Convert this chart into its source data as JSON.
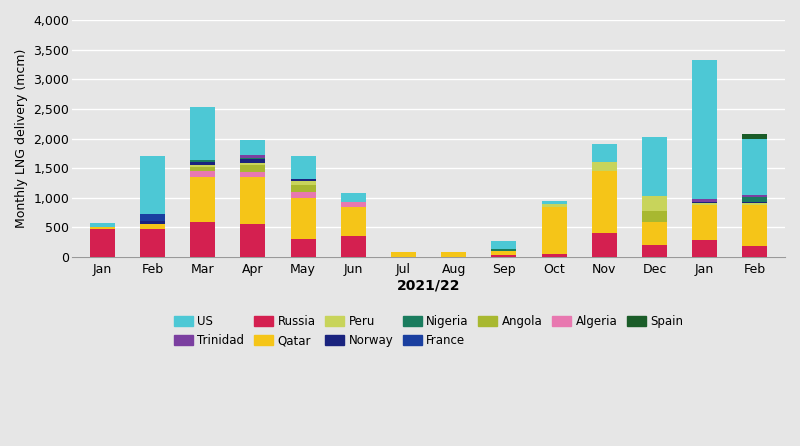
{
  "months": [
    "Jan",
    "Feb",
    "Mar",
    "Apr",
    "May",
    "Jun",
    "Jul",
    "Aug",
    "Sep",
    "Oct",
    "Nov",
    "Dec",
    "Jan",
    "Feb"
  ],
  "xlabel": "2021/22",
  "ylabel": "Monthly LNG delivery (mcm)",
  "ylim": [
    0,
    4000
  ],
  "yticks": [
    0,
    500,
    1000,
    1500,
    2000,
    2500,
    3000,
    3500,
    4000
  ],
  "background_color": "#e6e6e6",
  "grid_color": "#ffffff",
  "sources": [
    "Russia",
    "Qatar",
    "Algeria",
    "Angola",
    "Peru",
    "Norway",
    "Nigeria",
    "France",
    "Trinidad",
    "US",
    "Spain"
  ],
  "colors": {
    "US": "#4dc8d5",
    "Trinidad": "#7b3fa0",
    "Russia": "#d42050",
    "Qatar": "#f5c518",
    "Peru": "#c8d45b",
    "Norway": "#1a237e",
    "Nigeria": "#1a7c5e",
    "France": "#1a3fa0",
    "Angola": "#a8b830",
    "Algeria": "#e878b0",
    "Spain": "#1a5c28"
  },
  "data": {
    "Russia": [
      480,
      480,
      600,
      550,
      300,
      350,
      0,
      0,
      30,
      50,
      400,
      200,
      280,
      180
    ],
    "Qatar": [
      30,
      80,
      750,
      800,
      700,
      500,
      80,
      80,
      80,
      800,
      1050,
      400,
      600,
      700
    ],
    "Algeria": [
      0,
      0,
      100,
      80,
      100,
      80,
      0,
      0,
      0,
      0,
      0,
      0,
      0,
      0
    ],
    "Angola": [
      0,
      0,
      70,
      130,
      120,
      0,
      0,
      0,
      0,
      0,
      0,
      180,
      0,
      0
    ],
    "Peru": [
      0,
      0,
      30,
      30,
      60,
      0,
      0,
      0,
      0,
      50,
      150,
      250,
      30,
      30
    ],
    "Norway": [
      0,
      50,
      50,
      60,
      30,
      0,
      0,
      0,
      0,
      0,
      0,
      0,
      20,
      20
    ],
    "Nigeria": [
      0,
      0,
      30,
      30,
      0,
      0,
      0,
      0,
      30,
      0,
      0,
      0,
      0,
      80
    ],
    "France": [
      0,
      120,
      0,
      0,
      0,
      0,
      0,
      0,
      0,
      0,
      0,
      0,
      0,
      0
    ],
    "Trinidad": [
      0,
      0,
      0,
      50,
      0,
      0,
      0,
      0,
      0,
      0,
      0,
      0,
      50,
      30
    ],
    "US": [
      70,
      980,
      900,
      250,
      400,
      150,
      0,
      0,
      130,
      50,
      300,
      1000,
      2350,
      950
    ],
    "Spain": [
      0,
      0,
      0,
      0,
      0,
      0,
      0,
      0,
      0,
      0,
      0,
      0,
      0,
      80
    ]
  },
  "legend_order": [
    "US",
    "Trinidad",
    "Russia",
    "Qatar",
    "Peru",
    "Norway",
    "Nigeria",
    "France",
    "Angola",
    "Algeria",
    "Spain"
  ]
}
